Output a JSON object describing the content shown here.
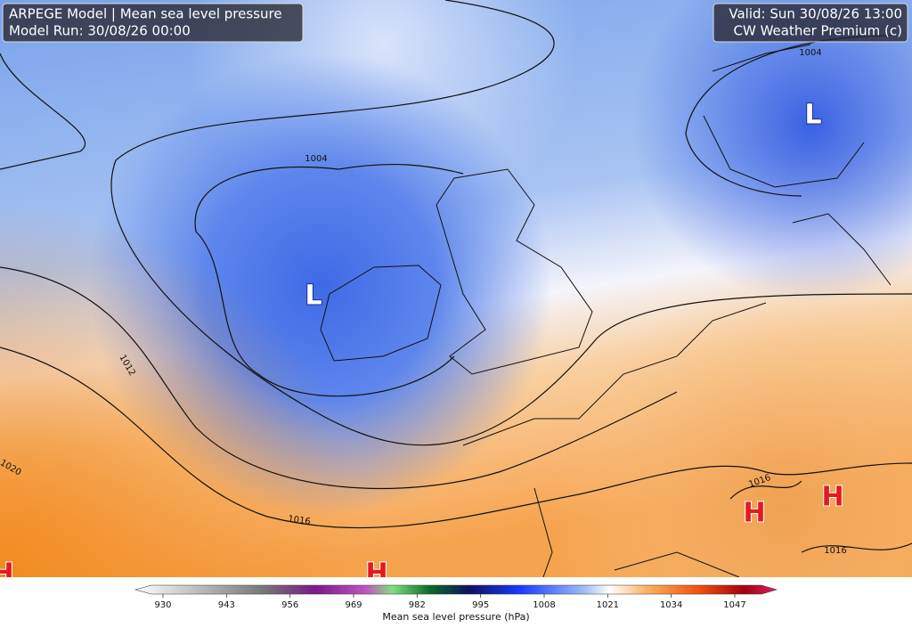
{
  "header": {
    "title": "ARPEGE Model | Mean sea level pressure",
    "run": "Model Run: 30/08/26 00:00",
    "valid": "Valid: Sun 30/08/26 13:00",
    "credit": "CW Weather Premium (c)"
  },
  "isobar_labels": [
    "1004",
    "1004",
    "1012",
    "1020",
    "1016",
    "1016",
    "1016"
  ],
  "centers": [
    "L",
    "L",
    "H",
    "H",
    "H",
    "H"
  ],
  "colorbar": {
    "label": "Mean sea level pressure (hPa)",
    "ticks": [
      930,
      943,
      956,
      969,
      982,
      995,
      1008,
      1021,
      1034,
      1047
    ]
  }
}
